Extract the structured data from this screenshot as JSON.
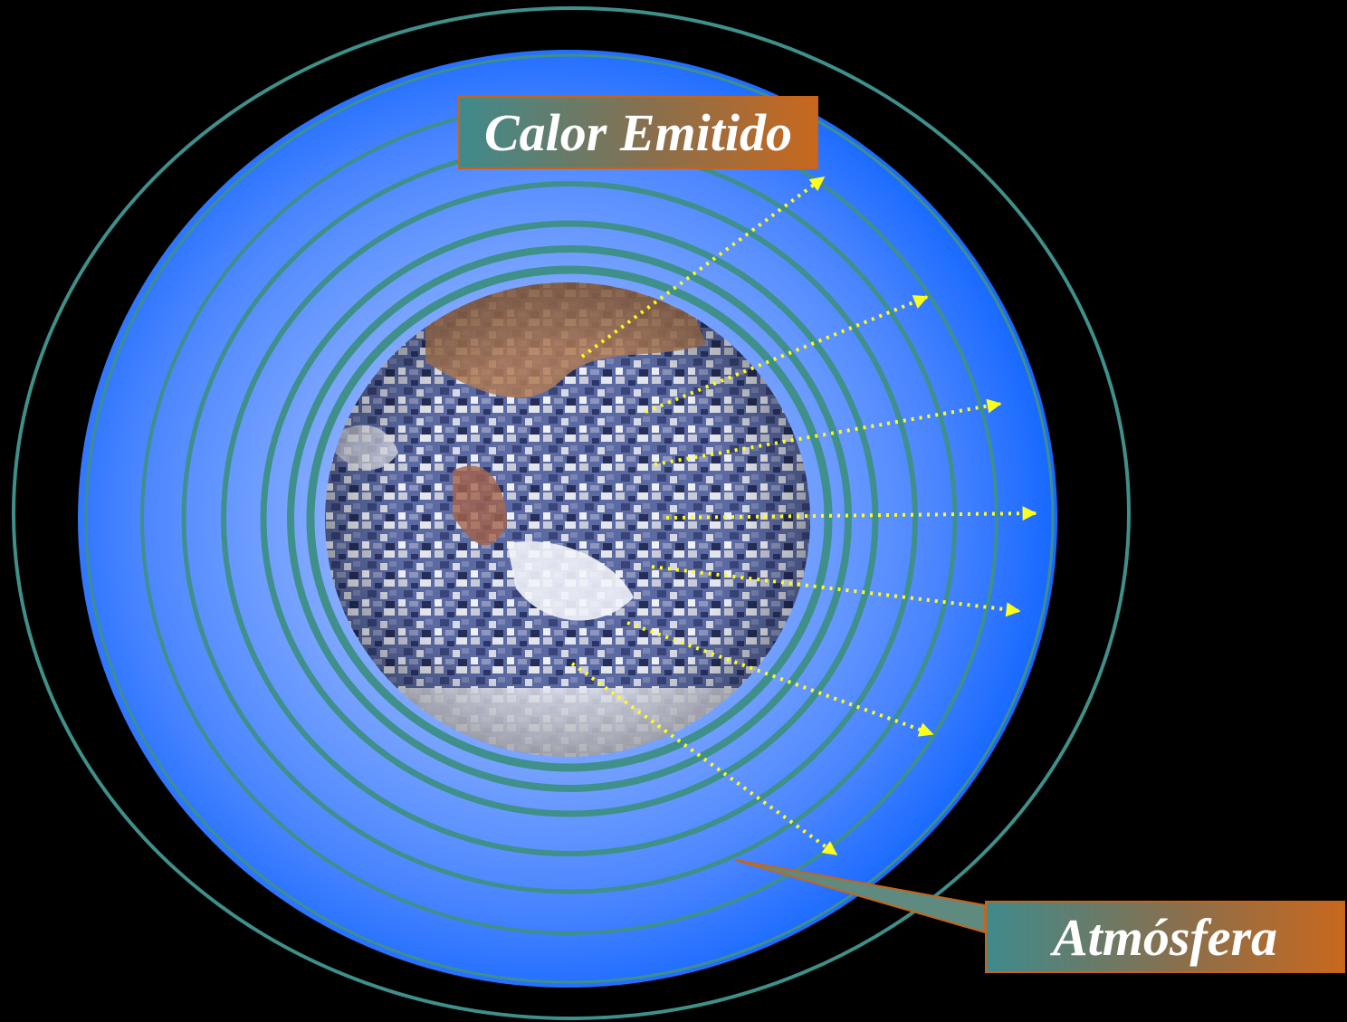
{
  "labels": {
    "calor_emitido": "Calor Emitido",
    "atmosfera": "Atmósfera"
  },
  "colors": {
    "background": "#000000",
    "atmosphere": "#1a66ff",
    "rings": "#3f8f8a",
    "arrows": "#ffff1a",
    "label_border": "#c8641a"
  },
  "icons": {
    "earth": "earth-globe-icon",
    "arrow": "heat-arrow-icon"
  }
}
